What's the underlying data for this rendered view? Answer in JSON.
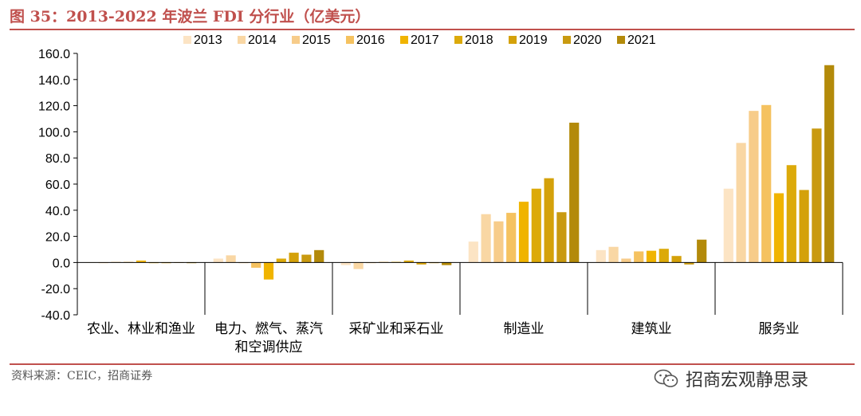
{
  "header": {
    "title": "图 35：2013-2022 年波兰 FDI 分行业（亿美元）"
  },
  "source": "资料来源：CEIC，招商证券",
  "watermark": {
    "icon": "wechat-icon",
    "text": "招商宏观静思录"
  },
  "chart_data": {
    "type": "bar",
    "title": "",
    "xlabel": "",
    "ylabel": "",
    "ylim": [
      -40,
      160
    ],
    "yticks": [
      "160.0",
      "140.0",
      "120.0",
      "100.0",
      "80.0",
      "60.0",
      "40.0",
      "20.0",
      "0.0",
      "-20.0",
      "-40.0"
    ],
    "grid": false,
    "legend_position": "top",
    "categories": [
      [
        "农业、林业和渔业"
      ],
      [
        "电力、燃气、蒸汽",
        "和空调供应"
      ],
      [
        "采矿业和采石业"
      ],
      [
        "制造业"
      ],
      [
        "建筑业"
      ],
      [
        "服务业"
      ]
    ],
    "series": [
      {
        "name": "2013",
        "color": "#fce4c4",
        "values": [
          0.2,
          3.0,
          -2.0,
          16.0,
          9.5,
          56.5
        ]
      },
      {
        "name": "2014",
        "color": "#f9d7a4",
        "values": [
          0.0,
          5.5,
          -5.0,
          37.0,
          12.0,
          91.5
        ]
      },
      {
        "name": "2015",
        "color": "#f7cc8a",
        "values": [
          0.5,
          0.0,
          0.0,
          31.5,
          3.0,
          116.0
        ]
      },
      {
        "name": "2016",
        "color": "#f5c260",
        "values": [
          0.5,
          -4.0,
          0.5,
          38.0,
          8.5,
          120.5
        ]
      },
      {
        "name": "2017",
        "color": "#f0b400",
        "values": [
          1.5,
          -13.0,
          0.5,
          46.5,
          9.0,
          53.0
        ]
      },
      {
        "name": "2018",
        "color": "#dcaa0a",
        "values": [
          0.0,
          3.0,
          1.5,
          56.5,
          10.5,
          74.5
        ]
      },
      {
        "name": "2019",
        "color": "#d4a10a",
        "values": [
          -0.5,
          7.5,
          -1.5,
          64.5,
          5.0,
          55.5
        ]
      },
      {
        "name": "2020",
        "color": "#c99a10",
        "values": [
          0.2,
          6.0,
          0.0,
          38.5,
          -1.5,
          102.5
        ]
      },
      {
        "name": "2021",
        "color": "#b38a0a",
        "values": [
          -0.5,
          9.5,
          -2.0,
          107.0,
          17.5,
          151.0
        ]
      }
    ]
  }
}
